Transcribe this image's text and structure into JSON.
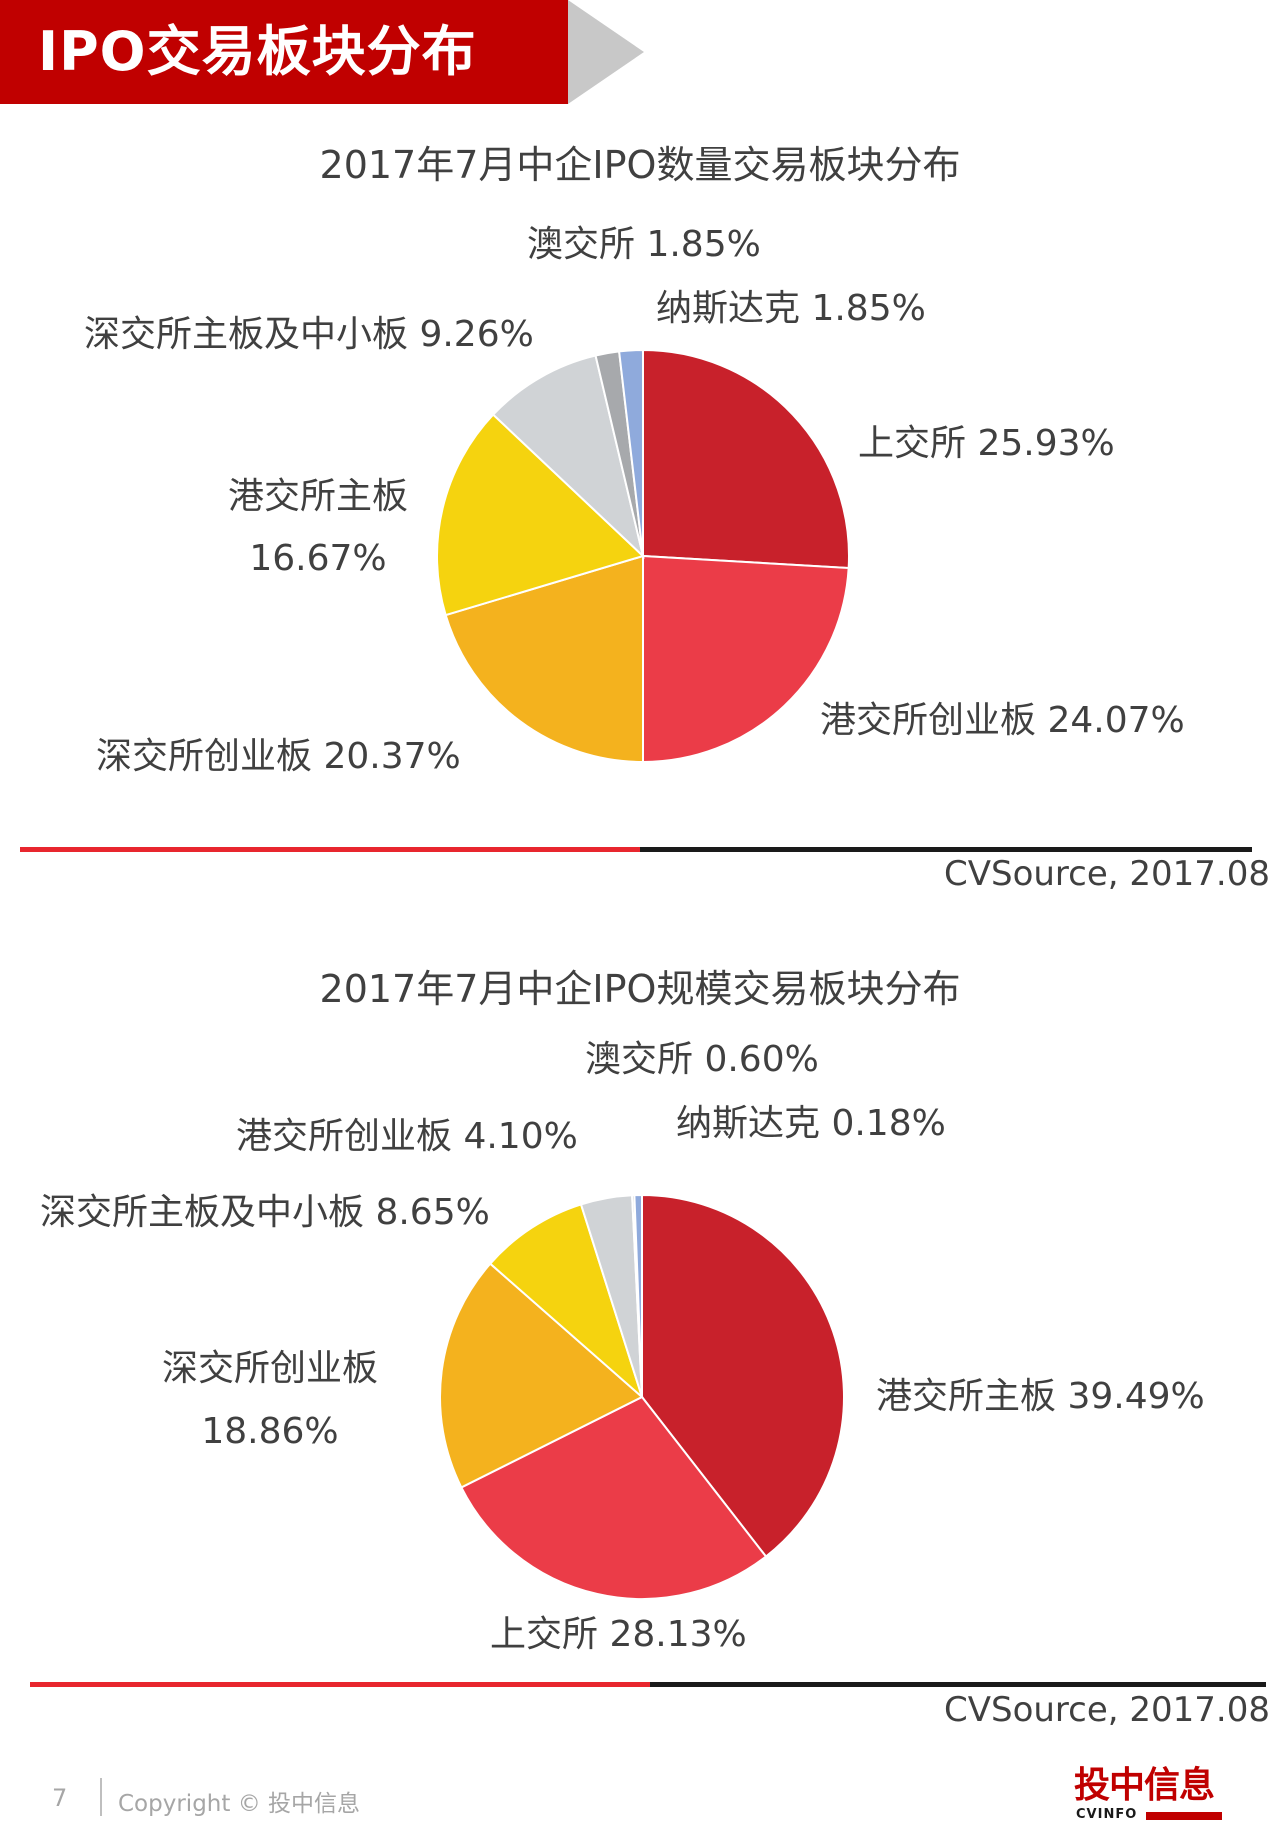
{
  "header": {
    "title": "IPO交易板块分布"
  },
  "chart_data": [
    {
      "type": "pie",
      "title": "2017年7月中企IPO数量交易板块分布",
      "source": "CVSource, 2017.08",
      "slices": [
        {
          "label": "上交所",
          "value": 25.93,
          "value_label": "25.93%",
          "color": "#c8212b"
        },
        {
          "label": "港交所创业板",
          "value": 24.07,
          "value_label": "24.07%",
          "color": "#eb3c48"
        },
        {
          "label": "深交所创业板",
          "value": 20.37,
          "value_label": "20.37%",
          "color": "#f4b21e"
        },
        {
          "label": "港交所主板",
          "value": 16.67,
          "value_label": "16.67%",
          "color": "#f5d30f"
        },
        {
          "label": "深交所主板及中小板",
          "value": 9.26,
          "value_label": "9.26%",
          "color": "#d0d3d6"
        },
        {
          "label": "纳斯达克",
          "value": 1.85,
          "value_label": "1.85%",
          "color": "#a7a9ac"
        },
        {
          "label": "澳交所",
          "value": 1.85,
          "value_label": "1.85%",
          "color": "#8faadc"
        }
      ]
    },
    {
      "type": "pie",
      "title": "2017年7月中企IPO规模交易板块分布",
      "source": "CVSource, 2017.08",
      "slices": [
        {
          "label": "港交所主板",
          "value": 39.49,
          "value_label": "39.49%",
          "color": "#c8212b"
        },
        {
          "label": "上交所",
          "value": 28.13,
          "value_label": "28.13%",
          "color": "#eb3c48"
        },
        {
          "label": "深交所创业板",
          "value": 18.86,
          "value_label": "18.86%",
          "color": "#f4b21e"
        },
        {
          "label": "深交所主板及中小板",
          "value": 8.65,
          "value_label": "8.65%",
          "color": "#f5d30f"
        },
        {
          "label": "港交所创业板",
          "value": 4.1,
          "value_label": "4.10%",
          "color": "#d0d3d6"
        },
        {
          "label": "纳斯达克",
          "value": 0.18,
          "value_label": "0.18%",
          "color": "#a7a9ac"
        },
        {
          "label": "澳交所",
          "value": 0.6,
          "value_label": "0.60%",
          "color": "#8faadc"
        }
      ]
    }
  ],
  "footer": {
    "page_number": "7",
    "copyright": "Copyright © 投中信息",
    "logo_text": "投中信息",
    "logo_sub": "CVINFO"
  }
}
